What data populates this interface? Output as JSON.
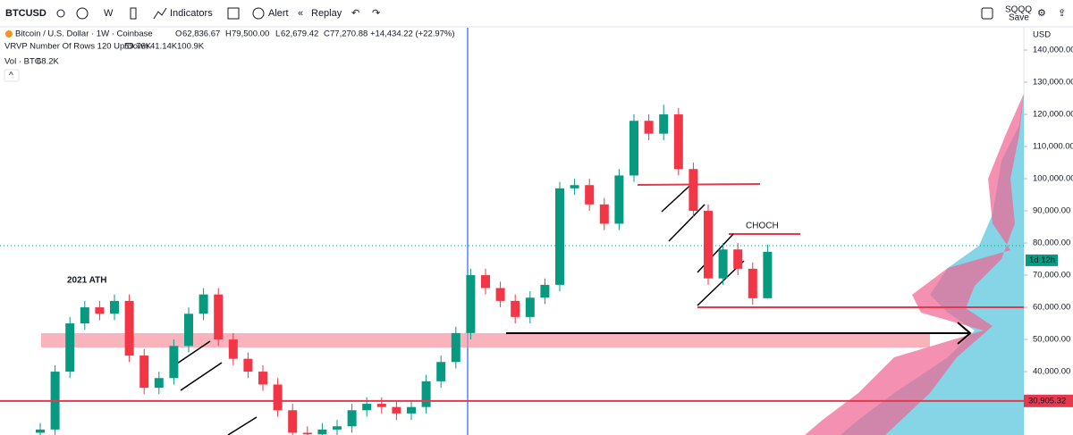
{
  "toolbar": {
    "symbol": "BTCUSD",
    "interval": "W",
    "indicators": "Indicators",
    "alert": "Alert",
    "replay": "Replay",
    "account": "SQQQ",
    "save": "Save"
  },
  "legend": {
    "title": "Bitcoin / U.S. Dollar · 1W · Coinbase",
    "o_label": "O",
    "o": "62,836.67",
    "h_label": "H",
    "h": "79,500.00",
    "l_label": "L",
    "l": "62,679.42",
    "c_label": "C",
    "c": "77,270.88",
    "change": "+14,434.22 (+22.97%)",
    "vrvp": "VRVP Number Of Rows 120 Up/Down",
    "vrvp_up": "59.76K",
    "vrvp_down": "41.14K",
    "vrvp_total": "100.9K",
    "vol": "Vol · BTC",
    "vol_value": "68.2K"
  },
  "chart_data": {
    "type": "candlestick",
    "axis_label": "USD",
    "categories": [
      null,
      null,
      null,
      null,
      null,
      null,
      null,
      null,
      null,
      null,
      null,
      null,
      null,
      null,
      null,
      null,
      null,
      null,
      null,
      null,
      null,
      null,
      null,
      null,
      null,
      null,
      null,
      null,
      null,
      null,
      null,
      null,
      null,
      null,
      null,
      null,
      null,
      null,
      null,
      null,
      null,
      null,
      null,
      null,
      null,
      null,
      null,
      null,
      null,
      null
    ],
    "open": [
      21000,
      22000,
      40000,
      55000,
      60000,
      58000,
      62000,
      45000,
      35000,
      38000,
      48000,
      58000,
      64000,
      50000,
      44000,
      40000,
      36000,
      28000,
      21000,
      20500,
      22000,
      23000,
      28000,
      30000,
      29000,
      27000,
      29000,
      37000,
      43000,
      52000,
      70000,
      66000,
      62000,
      57000,
      63000,
      67000,
      97000,
      98000,
      92000,
      86000,
      101000,
      118000,
      114000,
      120000,
      103000,
      90000,
      69000,
      78000,
      72000,
      62836.67
    ],
    "high": [
      24000,
      42000,
      57000,
      62000,
      62000,
      64000,
      64000,
      47000,
      40000,
      50000,
      60000,
      66000,
      66000,
      52000,
      46000,
      42000,
      38000,
      30000,
      23000,
      24000,
      25000,
      30000,
      32000,
      32000,
      31000,
      31000,
      39000,
      45000,
      54000,
      72000,
      72000,
      68000,
      64000,
      65000,
      69000,
      99000,
      100000,
      100000,
      94000,
      103000,
      120000,
      120000,
      123000,
      122000,
      105000,
      92000,
      80000,
      80000,
      74000,
      79500
    ],
    "low": [
      19000,
      20000,
      38000,
      53000,
      56000,
      56000,
      43000,
      33000,
      33000,
      36000,
      46000,
      56000,
      48000,
      42000,
      38000,
      34000,
      26000,
      19000,
      18500,
      18500,
      20000,
      21000,
      26000,
      27000,
      25000,
      25000,
      27000,
      35000,
      41000,
      50000,
      64000,
      60000,
      55000,
      55000,
      61000,
      65000,
      95000,
      90000,
      84000,
      84000,
      99000,
      112000,
      112000,
      101000,
      88000,
      67000,
      67000,
      70000,
      60800,
      62679.42
    ],
    "close": [
      22000,
      40000,
      55000,
      60000,
      58000,
      62000,
      45000,
      35000,
      38000,
      48000,
      58000,
      64000,
      50000,
      44000,
      40000,
      36000,
      28000,
      21000,
      20500,
      22000,
      23000,
      28000,
      30000,
      29000,
      27000,
      29000,
      37000,
      43000,
      52000,
      70000,
      66000,
      62000,
      57000,
      63000,
      67000,
      97000,
      98000,
      92000,
      86000,
      101000,
      118000,
      114000,
      120000,
      103000,
      90000,
      69000,
      78000,
      72000,
      62836.67,
      77270.88
    ],
    "up_color": "#089981",
    "down_color": "#f23645",
    "ylim": [
      20300,
      146400
    ],
    "yticks": [
      {
        "value": 140000,
        "label": "140,000.00"
      },
      {
        "value": 130000,
        "label": "130,000.00"
      },
      {
        "value": 120000,
        "label": "120,000.00"
      },
      {
        "value": 110000,
        "label": "110,000.00"
      },
      {
        "value": 100000,
        "label": "100,000.00"
      },
      {
        "value": 90000,
        "label": "90,000.00"
      },
      {
        "value": 80000,
        "label": "80,000.00"
      },
      {
        "value": 70000,
        "label": "70,000.00"
      },
      {
        "value": 60000,
        "label": "60,000.00"
      },
      {
        "value": 50000,
        "label": "50,000.00"
      },
      {
        "value": 40000,
        "label": "40,000.00"
      }
    ],
    "level": {
      "value": 30905.32,
      "label": "30,905.32"
    },
    "countdown": "1d 12h",
    "annotations": [
      "2021 ATH",
      "CHOCH"
    ]
  }
}
